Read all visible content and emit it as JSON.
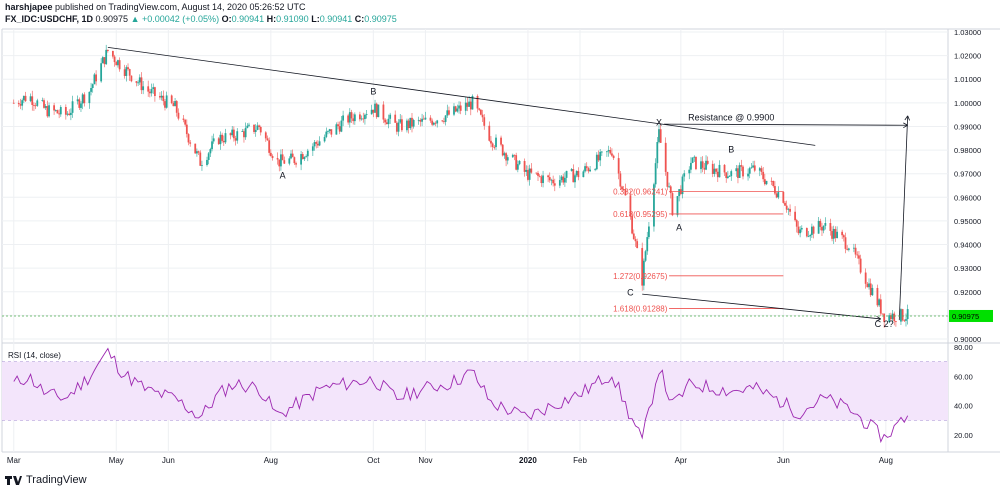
{
  "header": {
    "author": "harshjapee",
    "published": "published on TradingView.com, August 14, 2020 05:26:52 UTC",
    "symbol": "FX_IDC:USDCHF, 1D",
    "last": "0.90975",
    "change": "▲ +0.00042 (+0.05%)",
    "o_label": "O:",
    "o_value": "0.90941",
    "h_label": "H:",
    "h_value": "0.91090",
    "l_label": "L:",
    "l_value": "0.90941",
    "c_label": "C:",
    "c_value": "0.90975"
  },
  "footer": {
    "brand": "TradingView"
  },
  "colors": {
    "up": "#26a69a",
    "down": "#ef5350",
    "rsi_line": "#9c27b0",
    "rsi_band": "#f3e5fb",
    "fib": "#ef5350",
    "price_line": "#4caf50",
    "grid": "#eef0f3"
  },
  "chart_data": [
    {
      "type": "candlestick",
      "title": "FX_IDC:USDCHF, 1D",
      "ylim": [
        0.9,
        1.03
      ],
      "yticks": [
        "1.03000",
        "1.02000",
        "1.01000",
        "1.00000",
        "0.99000",
        "0.98000",
        "0.97000",
        "0.96000",
        "0.95000",
        "0.94000",
        "0.93000",
        "0.92000",
        "0.91000",
        "0.90000"
      ],
      "xticks": [
        "Mar",
        "May",
        "Jun",
        "Aug",
        "Oct",
        "Nov",
        "2020",
        "Feb",
        "Apr",
        "Jun",
        "Aug"
      ],
      "last_price_label": "0.90975",
      "close_path": [
        [
          "2019-03-01",
          1.0
        ],
        [
          "2019-03-10",
          1.003
        ],
        [
          "2019-03-20",
          0.997
        ],
        [
          "2019-04-01",
          0.995
        ],
        [
          "2019-04-15",
          1.005
        ],
        [
          "2019-04-26",
          1.022
        ],
        [
          "2019-05-05",
          1.015
        ],
        [
          "2019-05-20",
          1.005
        ],
        [
          "2019-06-05",
          0.998
        ],
        [
          "2019-06-20",
          0.975
        ],
        [
          "2019-07-01",
          0.985
        ],
        [
          "2019-07-10",
          0.986
        ],
        [
          "2019-07-25",
          0.99
        ],
        [
          "2019-08-05",
          0.975
        ],
        [
          "2019-08-15",
          0.976
        ],
        [
          "2019-09-01",
          0.985
        ],
        [
          "2019-09-15",
          0.993
        ],
        [
          "2019-10-01",
          0.998
        ],
        [
          "2019-10-15",
          0.99
        ],
        [
          "2019-11-01",
          0.992
        ],
        [
          "2019-11-15",
          0.995
        ],
        [
          "2019-11-29",
          1.0
        ],
        [
          "2019-12-10",
          0.985
        ],
        [
          "2019-12-31",
          0.97
        ],
        [
          "2020-01-15",
          0.967
        ],
        [
          "2020-02-01",
          0.97
        ],
        [
          "2020-02-20",
          0.98
        ],
        [
          "2020-03-01",
          0.955
        ],
        [
          "2020-03-09",
          0.925
        ],
        [
          "2020-03-19",
          0.987
        ],
        [
          "2020-03-27",
          0.955
        ],
        [
          "2020-04-07",
          0.975
        ],
        [
          "2020-04-20",
          0.972
        ],
        [
          "2020-05-01",
          0.97
        ],
        [
          "2020-05-15",
          0.972
        ],
        [
          "2020-06-01",
          0.96
        ],
        [
          "2020-06-10",
          0.945
        ],
        [
          "2020-06-25",
          0.948
        ],
        [
          "2020-07-10",
          0.94
        ],
        [
          "2020-07-31",
          0.91
        ],
        [
          "2020-08-14",
          0.90975
        ]
      ],
      "fib_levels": [
        {
          "label": "0.382(0.96241)",
          "value": 0.96241
        },
        {
          "label": "0.618(0.95295)",
          "value": 0.95295
        },
        {
          "label": "1.272(0.92675)",
          "value": 0.92675
        },
        {
          "label": "1.618(0.91288)",
          "value": 0.91288
        }
      ],
      "annotations": [
        {
          "text": "A",
          "x": "2019-08-08",
          "y": 0.968
        },
        {
          "text": "B",
          "x": "2019-10-01",
          "y": 1.0035
        },
        {
          "text": "X",
          "x": "2020-03-19",
          "y": 0.9905
        },
        {
          "text": "Resistance @ 0.9900",
          "x": "2020-05-01",
          "y": 0.9925
        },
        {
          "text": "B",
          "x": "2020-05-01",
          "y": 0.979
        },
        {
          "text": "A",
          "x": "2020-03-31",
          "y": 0.946
        },
        {
          "text": "C",
          "x": "2020-03-02",
          "y": 0.9185
        },
        {
          "text": "C 2?",
          "x": "2020-07-31",
          "y": 0.905
        }
      ],
      "trendlines": [
        [
          [
            "2019-04-26",
            1.0235
          ],
          [
            "2020-06-20",
            0.982
          ]
        ],
        [
          [
            "2020-03-09",
            0.919
          ],
          [
            "2020-07-29",
            0.9085
          ]
        ],
        [
          [
            "2020-03-22",
            0.991
          ],
          [
            "2020-08-14",
            0.9905
          ]
        ],
        [
          [
            "2020-08-09",
            0.908
          ],
          [
            "2020-08-14",
            0.9945
          ]
        ]
      ]
    },
    {
      "type": "line",
      "title": "RSI (14, close)",
      "ylim": [
        10,
        80
      ],
      "yticks": [
        "80.00",
        "60.00",
        "40.00",
        "20.00"
      ],
      "bands": [
        30,
        70
      ],
      "series": [
        {
          "values": [
            [
              "2019-03-01",
              55
            ],
            [
              "2019-03-10",
              60
            ],
            [
              "2019-03-20",
              48
            ],
            [
              "2019-04-01",
              45
            ],
            [
              "2019-04-15",
              60
            ],
            [
              "2019-04-26",
              77
            ],
            [
              "2019-05-05",
              62
            ],
            [
              "2019-05-20",
              50
            ],
            [
              "2019-06-05",
              45
            ],
            [
              "2019-06-20",
              32
            ],
            [
              "2019-07-01",
              48
            ],
            [
              "2019-07-10",
              55
            ],
            [
              "2019-07-25",
              52
            ],
            [
              "2019-08-05",
              33
            ],
            [
              "2019-08-15",
              40
            ],
            [
              "2019-09-01",
              52
            ],
            [
              "2019-09-15",
              55
            ],
            [
              "2019-10-01",
              58
            ],
            [
              "2019-10-15",
              45
            ],
            [
              "2019-11-01",
              52
            ],
            [
              "2019-11-15",
              55
            ],
            [
              "2019-11-29",
              63
            ],
            [
              "2019-12-10",
              42
            ],
            [
              "2019-12-31",
              32
            ],
            [
              "2020-01-15",
              40
            ],
            [
              "2020-02-01",
              48
            ],
            [
              "2020-02-20",
              62
            ],
            [
              "2020-03-01",
              35
            ],
            [
              "2020-03-09",
              16
            ],
            [
              "2020-03-19",
              66
            ],
            [
              "2020-03-27",
              40
            ],
            [
              "2020-04-07",
              55
            ],
            [
              "2020-04-20",
              52
            ],
            [
              "2020-05-01",
              50
            ],
            [
              "2020-05-15",
              52
            ],
            [
              "2020-06-01",
              42
            ],
            [
              "2020-06-10",
              35
            ],
            [
              "2020-06-25",
              45
            ],
            [
              "2020-07-10",
              38
            ],
            [
              "2020-07-31",
              18
            ],
            [
              "2020-08-14",
              34
            ]
          ]
        }
      ]
    }
  ]
}
